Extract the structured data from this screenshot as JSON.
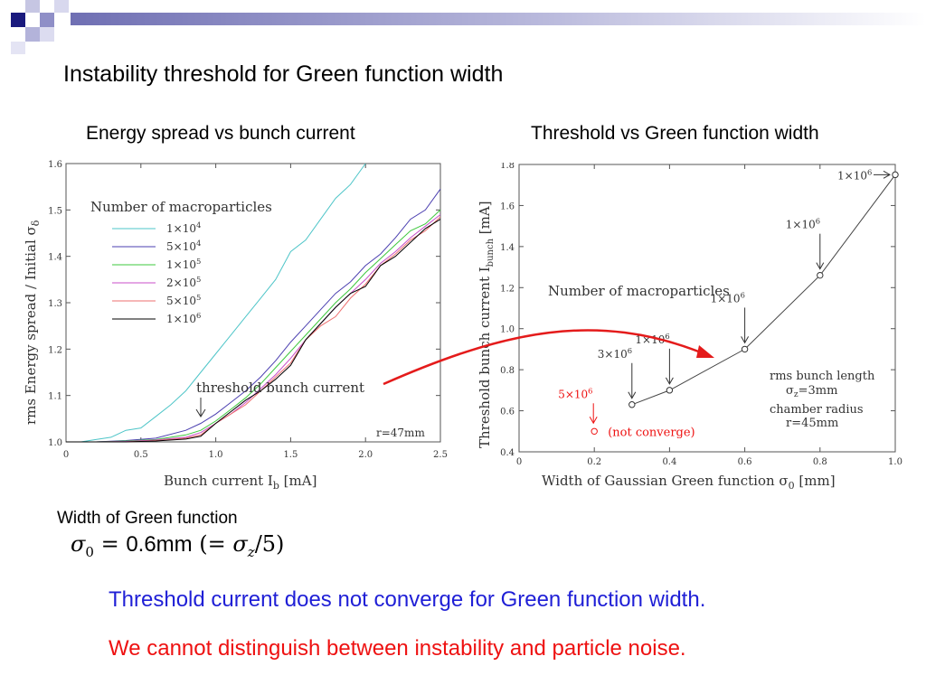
{
  "slide": {
    "title": "Instability threshold for Green function width",
    "left_subtitle": "Energy spread vs bunch current",
    "right_subtitle": "Threshold vs Green function width",
    "width_label": "Width of Green function",
    "formula": {
      "lhs": "σ",
      "sub": "0",
      "eq": " = ",
      "value": "0.6mm",
      "paren_open": " (= ",
      "rhs_sym": "σ",
      "rhs_sub": "z",
      "rhs_tail": "/5)"
    },
    "conclusion_blue": "Threshold current does not converge for Green function width.",
    "conclusion_red": "We cannot distinguish between instability and particle noise."
  },
  "chart_data": [
    {
      "type": "line",
      "xlabel": "Bunch current  I_b [mA]",
      "xlabel_main": "Bunch current  I",
      "xlabel_sub": "b",
      "xlabel_unit": " [mA]",
      "ylabel": "rms Energy spread / Initial σ_δ",
      "ylabel_main": "rms Energy spread / Initial σ",
      "ylabel_sub": "δ",
      "xlim": [
        0,
        2.5
      ],
      "ylim": [
        1.0,
        1.6
      ],
      "xticks": [
        "0",
        "0.5",
        "1.0",
        "1.5",
        "2.0",
        "2.5"
      ],
      "yticks": [
        "1.0",
        "1.1",
        "1.2",
        "1.3",
        "1.4",
        "1.5",
        "1.6"
      ],
      "legend_title": "Number of macroparticles",
      "annotations": {
        "threshold": "threshold bunch current",
        "radius": "r=47mm"
      },
      "series": [
        {
          "name": "1×10^4",
          "base": "1×10",
          "exp": "4",
          "color": "#4ec5c8",
          "x": [
            0,
            0.1,
            0.2,
            0.3,
            0.4,
            0.5,
            0.6,
            0.7,
            0.8,
            0.9,
            1.0,
            1.1,
            1.2,
            1.3,
            1.4,
            1.5,
            1.6,
            1.7,
            1.8,
            1.9,
            2.0
          ],
          "y": [
            1.0,
            1.0,
            1.005,
            1.01,
            1.025,
            1.03,
            1.055,
            1.08,
            1.11,
            1.15,
            1.19,
            1.23,
            1.27,
            1.31,
            1.35,
            1.41,
            1.435,
            1.48,
            1.525,
            1.555,
            1.6
          ]
        },
        {
          "name": "5×10^4",
          "base": "5×10",
          "exp": "4",
          "color": "#4b3fb0",
          "x": [
            0,
            0.2,
            0.4,
            0.6,
            0.8,
            0.9,
            1.0,
            1.1,
            1.2,
            1.3,
            1.4,
            1.5,
            1.6,
            1.7,
            1.8,
            1.9,
            2.0,
            2.1,
            2.2,
            2.3,
            2.4,
            2.5
          ],
          "y": [
            1.0,
            1.0,
            1.003,
            1.008,
            1.025,
            1.04,
            1.06,
            1.085,
            1.11,
            1.14,
            1.175,
            1.215,
            1.25,
            1.285,
            1.32,
            1.345,
            1.38,
            1.405,
            1.44,
            1.48,
            1.5,
            1.545
          ]
        },
        {
          "name": "1×10^5",
          "base": "1×10",
          "exp": "5",
          "color": "#3ec83e",
          "x": [
            0,
            0.2,
            0.4,
            0.6,
            0.8,
            0.9,
            1.0,
            1.1,
            1.2,
            1.3,
            1.4,
            1.5,
            1.6,
            1.7,
            1.8,
            1.9,
            2.0,
            2.1,
            2.2,
            2.3,
            2.4,
            2.5
          ],
          "y": [
            1.0,
            1.0,
            1.002,
            1.005,
            1.015,
            1.025,
            1.045,
            1.07,
            1.095,
            1.125,
            1.16,
            1.195,
            1.23,
            1.265,
            1.3,
            1.33,
            1.365,
            1.395,
            1.425,
            1.455,
            1.47,
            1.5
          ]
        },
        {
          "name": "2×10^5",
          "base": "2×10",
          "exp": "5",
          "color": "#c84ec8",
          "x": [
            0,
            0.2,
            0.4,
            0.6,
            0.8,
            0.9,
            1.0,
            1.1,
            1.2,
            1.3,
            1.4,
            1.5,
            1.6,
            1.7,
            1.8,
            1.9,
            2.0,
            2.1,
            2.2,
            2.3,
            2.4,
            2.5
          ],
          "y": [
            1.0,
            1.0,
            1.001,
            1.004,
            1.01,
            1.02,
            1.04,
            1.06,
            1.085,
            1.115,
            1.145,
            1.18,
            1.22,
            1.255,
            1.29,
            1.32,
            1.35,
            1.385,
            1.41,
            1.44,
            1.465,
            1.49
          ]
        },
        {
          "name": "5×10^5",
          "base": "5×10",
          "exp": "5",
          "color": "#ee6f6f",
          "x": [
            0,
            0.2,
            0.4,
            0.6,
            0.8,
            0.9,
            1.0,
            1.1,
            1.2,
            1.3,
            1.4,
            1.5,
            1.6,
            1.7,
            1.8,
            1.9,
            2.0,
            2.1,
            2.2,
            2.3,
            2.4,
            2.5
          ],
          "y": [
            1.0,
            1.0,
            1.0,
            1.003,
            1.008,
            1.015,
            1.04,
            1.06,
            1.08,
            1.11,
            1.14,
            1.17,
            1.22,
            1.25,
            1.27,
            1.31,
            1.34,
            1.38,
            1.405,
            1.435,
            1.455,
            1.485
          ]
        },
        {
          "name": "1×10^6",
          "base": "1×10",
          "exp": "6",
          "color": "#000000",
          "x": [
            0,
            0.2,
            0.4,
            0.6,
            0.8,
            0.9,
            1.0,
            1.1,
            1.2,
            1.3,
            1.4,
            1.5,
            1.6,
            1.7,
            1.8,
            1.9,
            2.0,
            2.1,
            2.2,
            2.3,
            2.4,
            2.5
          ],
          "y": [
            1.0,
            1.0,
            1.0,
            1.002,
            1.006,
            1.012,
            1.04,
            1.065,
            1.09,
            1.11,
            1.135,
            1.165,
            1.22,
            1.255,
            1.29,
            1.32,
            1.335,
            1.38,
            1.4,
            1.43,
            1.46,
            1.48
          ]
        }
      ]
    },
    {
      "type": "scatter",
      "xlabel": "Width of Gaussian Green function  σ_0 [mm]",
      "xlabel_main": "Width of Gaussian Green function  σ",
      "xlabel_sub": "0",
      "xlabel_unit": " [mm]",
      "ylabel": "Threshold bunch current  I_bunch [mA]",
      "ylabel_main": "Threshold bunch current  I",
      "ylabel_sub": "bunch",
      "ylabel_unit": " [mA]",
      "xlim": [
        0,
        1.0
      ],
      "ylim": [
        0.4,
        1.8
      ],
      "xticks": [
        "0",
        "0.2",
        "0.4",
        "0.6",
        "0.8",
        "1.0"
      ],
      "yticks": [
        "0.4",
        "0.6",
        "0.8",
        "1.0",
        "1.2",
        "1.4",
        "1.6",
        "1.8"
      ],
      "legend_title": "Number of macroparticles",
      "points": [
        {
          "x": 0.3,
          "y": 0.63,
          "label_base": "3×10",
          "label_exp": "6"
        },
        {
          "x": 0.4,
          "y": 0.7,
          "label_base": "1×10",
          "label_exp": "6"
        },
        {
          "x": 0.6,
          "y": 0.9,
          "label_base": "1×10",
          "label_exp": "6"
        },
        {
          "x": 0.8,
          "y": 1.26,
          "label_base": "1×10",
          "label_exp": "6"
        },
        {
          "x": 1.0,
          "y": 1.75,
          "label_base": "1×10",
          "label_exp": "6"
        }
      ],
      "not_converge": {
        "x": 0.2,
        "y": 0.5,
        "label_base": "5×10",
        "label_exp": "6",
        "note": "(not converge)",
        "color": "#ee1111"
      },
      "info": {
        "line1": "rms bunch length",
        "line2_sym": "σ",
        "line2_sub": "z",
        "line2_tail": "=3mm",
        "line3": "chamber radius",
        "line4": "r=45mm"
      }
    }
  ],
  "colors": {
    "accent_blue": "#1f1fd6",
    "accent_red": "#ee1111",
    "arrow_red": "#e41b1b",
    "header_navy": "#1a1a7e"
  }
}
